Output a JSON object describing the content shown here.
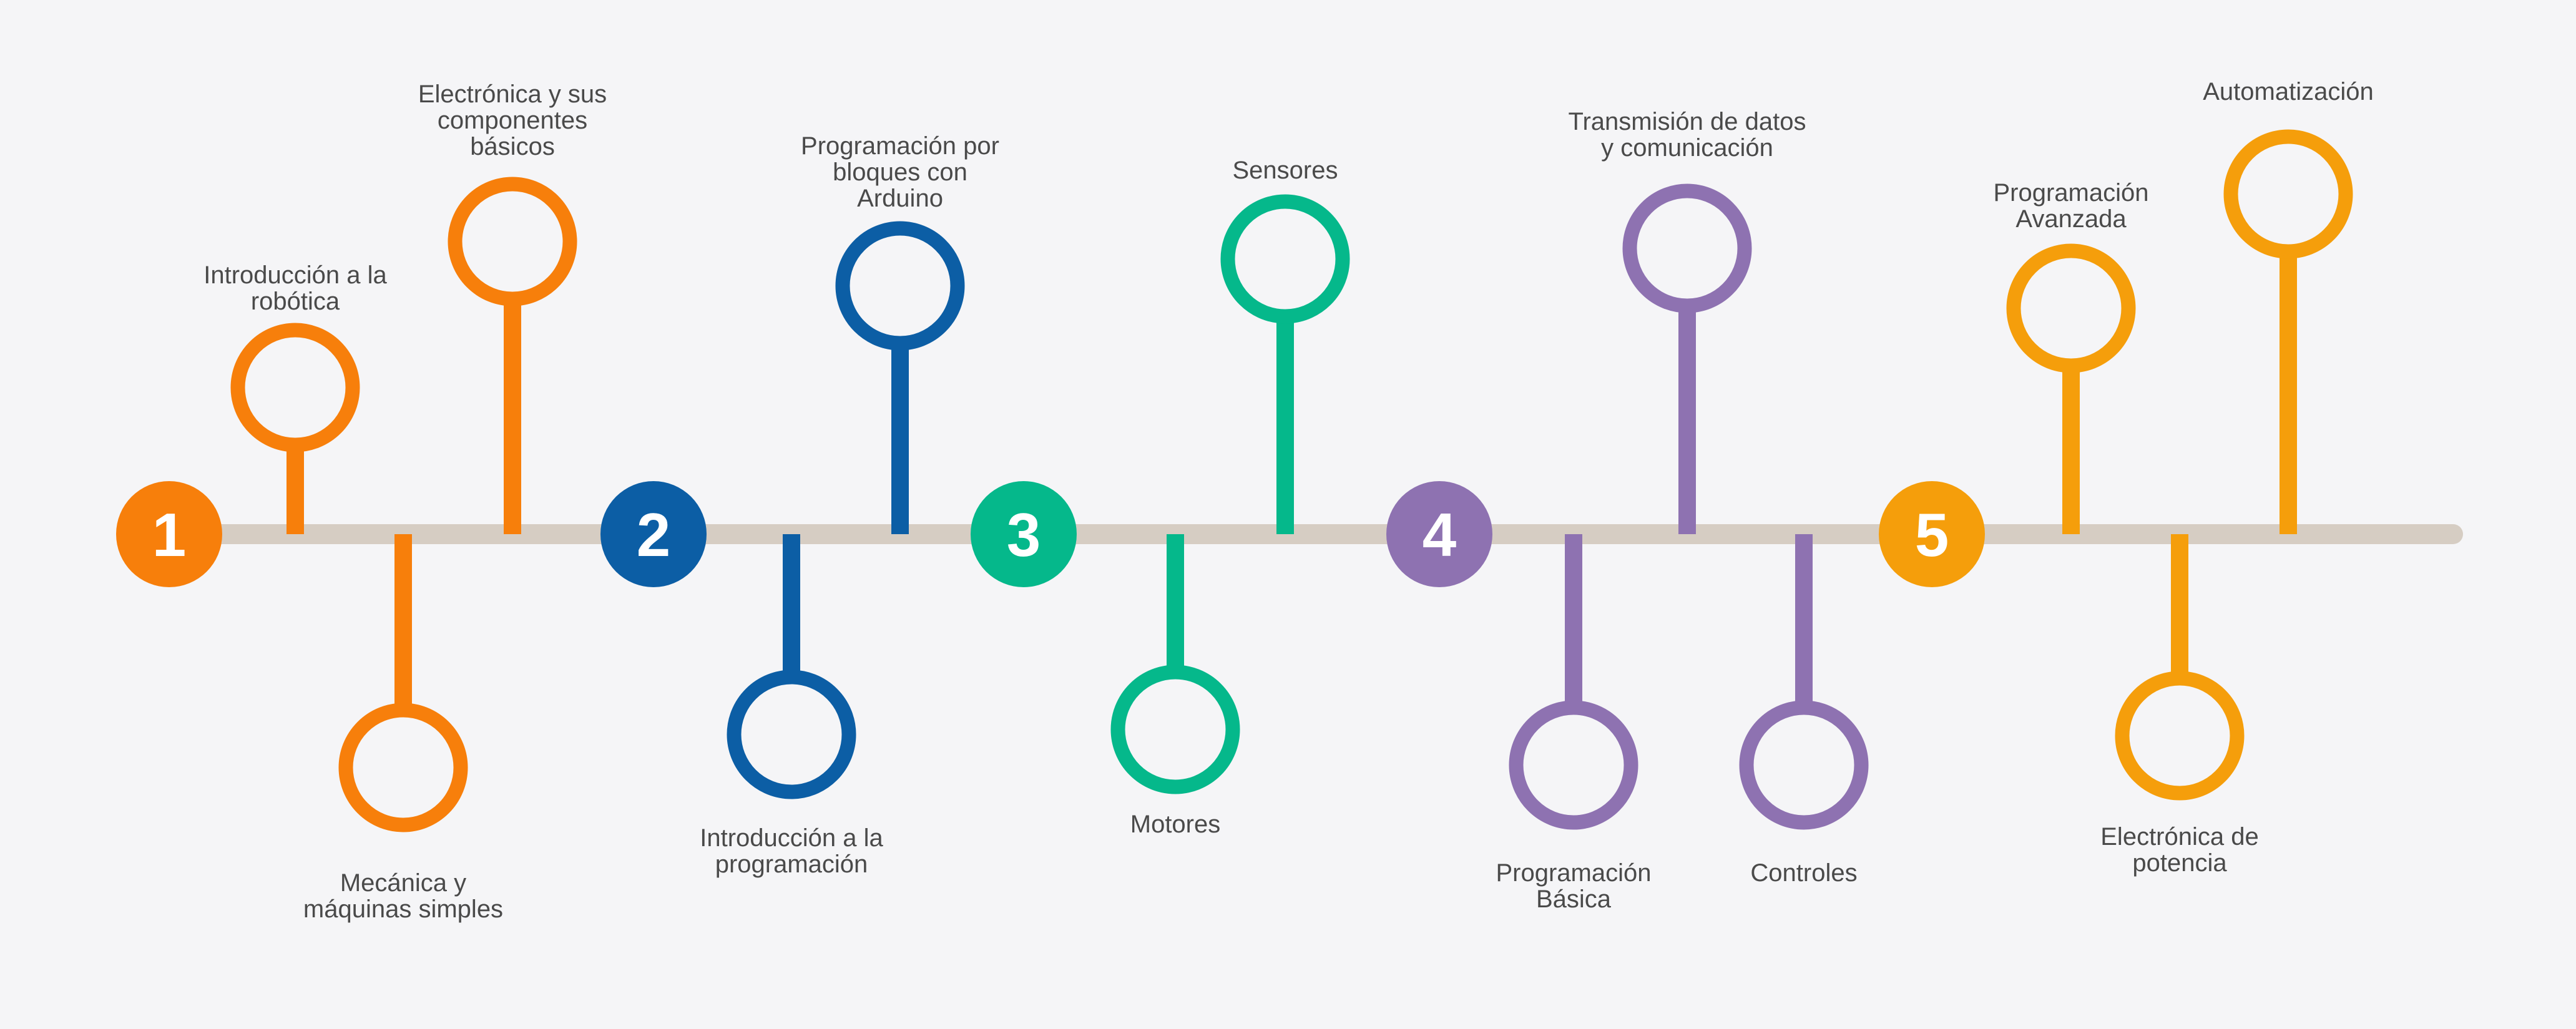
{
  "diagram": {
    "type": "timeline",
    "axis_color": "#d6cdc3",
    "milestones": [
      {
        "number": "1",
        "color": "#f77f0b"
      },
      {
        "number": "2",
        "color": "#0c5ea5"
      },
      {
        "number": "3",
        "color": "#05b88b"
      },
      {
        "number": "4",
        "color": "#8e72b1"
      },
      {
        "number": "5",
        "color": "#f59e0b"
      }
    ],
    "topics": [
      {
        "label": "Introducción a la\nrobótica",
        "group": 1,
        "side": "above"
      },
      {
        "label": "Mecánica y\nmáquinas simples",
        "group": 1,
        "side": "below"
      },
      {
        "label": "Electrónica y sus\ncomponentes\nbásicos",
        "group": 1,
        "side": "above"
      },
      {
        "label": "Introducción a la\nprogramación",
        "group": 2,
        "side": "below"
      },
      {
        "label": "Programación por\nbloques con\nArduino",
        "group": 2,
        "side": "above"
      },
      {
        "label": "Motores",
        "group": 3,
        "side": "below"
      },
      {
        "label": "Sensores",
        "group": 3,
        "side": "above"
      },
      {
        "label": "Programación\nBásica",
        "group": 4,
        "side": "below"
      },
      {
        "label": "Transmisión de datos\ny comunicación",
        "group": 4,
        "side": "above"
      },
      {
        "label": "Controles",
        "group": 4,
        "side": "below"
      },
      {
        "label": "Programación\nAvanzada",
        "group": 5,
        "side": "above"
      },
      {
        "label": "Electrónica de\npotencia",
        "group": 5,
        "side": "below"
      },
      {
        "label": "Automatización",
        "group": 5,
        "side": "above"
      }
    ]
  }
}
